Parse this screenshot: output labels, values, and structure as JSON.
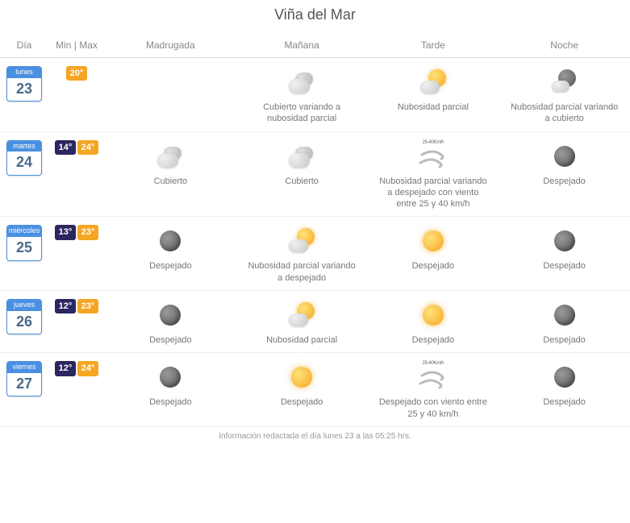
{
  "title": "Viña del Mar",
  "columns": {
    "day": "Día",
    "minmax": "Min | Max",
    "dawn": "Madrugada",
    "morning": "Mañana",
    "afternoon": "Tarde",
    "night": "Noche"
  },
  "temp_colors": {
    "min_bg": "#2b2560",
    "max_bg": "#f5a623",
    "single_bg": "#f5a623"
  },
  "day_badge_colors": {
    "border": "#4a90e2",
    "header_bg": "#4a90e2",
    "header_text": "#ffffff",
    "num_text": "#4a6a8a"
  },
  "wind_label": "25-40Km/h",
  "footer": "Información redactada el día lunes 23 a las 05:25 hrs.",
  "days": [
    {
      "dow": "lunes",
      "num": "23",
      "min": null,
      "max": "20°",
      "periods": {
        "dawn": null,
        "morning": {
          "icon": "cloudy",
          "desc": "Cubierto variando a nubosidad parcial"
        },
        "afternoon": {
          "icon": "partly-sunny",
          "desc": "Nubosidad parcial"
        },
        "night": {
          "icon": "night-partly",
          "desc": "Nubosidad parcial variando a cubierto"
        }
      }
    },
    {
      "dow": "martes",
      "num": "24",
      "min": "14°",
      "max": "24°",
      "periods": {
        "dawn": {
          "icon": "cloudy",
          "desc": "Cubierto"
        },
        "morning": {
          "icon": "cloudy",
          "desc": "Cubierto"
        },
        "afternoon": {
          "icon": "wind",
          "desc": "Nubosidad parcial variando a despejado con viento entre 25 y 40 km/h"
        },
        "night": {
          "icon": "clear-night",
          "desc": "Despejado"
        }
      }
    },
    {
      "dow": "miércoles",
      "num": "25",
      "min": "13°",
      "max": "23°",
      "periods": {
        "dawn": {
          "icon": "clear-night",
          "desc": "Despejado"
        },
        "morning": {
          "icon": "partly-sunny",
          "desc": "Nubosidad parcial variando a despejado"
        },
        "afternoon": {
          "icon": "sunny",
          "desc": "Despejado"
        },
        "night": {
          "icon": "clear-night",
          "desc": "Despejado"
        }
      }
    },
    {
      "dow": "jueves",
      "num": "26",
      "min": "12°",
      "max": "23°",
      "periods": {
        "dawn": {
          "icon": "clear-night",
          "desc": "Despejado"
        },
        "morning": {
          "icon": "partly-sunny",
          "desc": "Nubosidad parcial"
        },
        "afternoon": {
          "icon": "sunny",
          "desc": "Despejado"
        },
        "night": {
          "icon": "clear-night",
          "desc": "Despejado"
        }
      }
    },
    {
      "dow": "viernes",
      "num": "27",
      "min": "12°",
      "max": "24°",
      "periods": {
        "dawn": {
          "icon": "clear-night",
          "desc": "Despejado"
        },
        "morning": {
          "icon": "sunny",
          "desc": "Despejado"
        },
        "afternoon": {
          "icon": "wind",
          "desc": "Despejado con viento entre 25 y 40 km/h"
        },
        "night": {
          "icon": "clear-night",
          "desc": "Despejado"
        }
      }
    }
  ]
}
